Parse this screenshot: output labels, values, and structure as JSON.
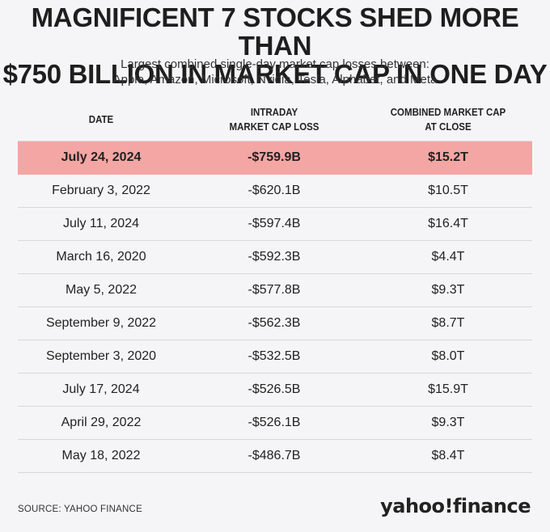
{
  "header": {
    "title_line1": "MAGNIFICENT 7 STOCKS SHED MORE THAN",
    "title_line2": "$750 BILLION IN MARKET CAP IN ONE DAY",
    "subtitle_line1": "Largest combined single-day market cap losses between:",
    "subtitle_line2": "Apple, Amazon, Microsoft, Nvidia, Tesla, Alphabet, and Meta"
  },
  "colors": {
    "highlight_row": "#f4a6a4",
    "background": "#f5f5f7"
  },
  "chart_data": {
    "type": "table",
    "columns": [
      {
        "line1": "DATE",
        "line2": ""
      },
      {
        "line1": "INTRADAY",
        "line2": "MARKET CAP LOSS"
      },
      {
        "line1": "COMBINED MARKET CAP",
        "line2": "AT CLOSE"
      }
    ],
    "highlighted_row": 0,
    "rows": [
      [
        "July 24, 2024",
        "-$759.9B",
        "$15.2T"
      ],
      [
        "February 3, 2022",
        "-$620.1B",
        "$10.5T"
      ],
      [
        "July 11, 2024",
        "-$597.4B",
        "$16.4T"
      ],
      [
        "March 16, 2020",
        "-$592.3B",
        "$4.4T"
      ],
      [
        "May 5, 2022",
        "-$577.8B",
        "$9.3T"
      ],
      [
        "September 9, 2022",
        "-$562.3B",
        "$8.7T"
      ],
      [
        "September 3, 2020",
        "-$532.5B",
        "$8.0T"
      ],
      [
        "July 17, 2024",
        "-$526.5B",
        "$15.9T"
      ],
      [
        "April 29, 2022",
        "-$526.1B",
        "$9.3T"
      ],
      [
        "May 18, 2022",
        "-$486.7B",
        "$8.4T"
      ]
    ]
  },
  "footer": {
    "source": "SOURCE: YAHOO FINANCE",
    "logo_text": "yahoo!finance"
  }
}
